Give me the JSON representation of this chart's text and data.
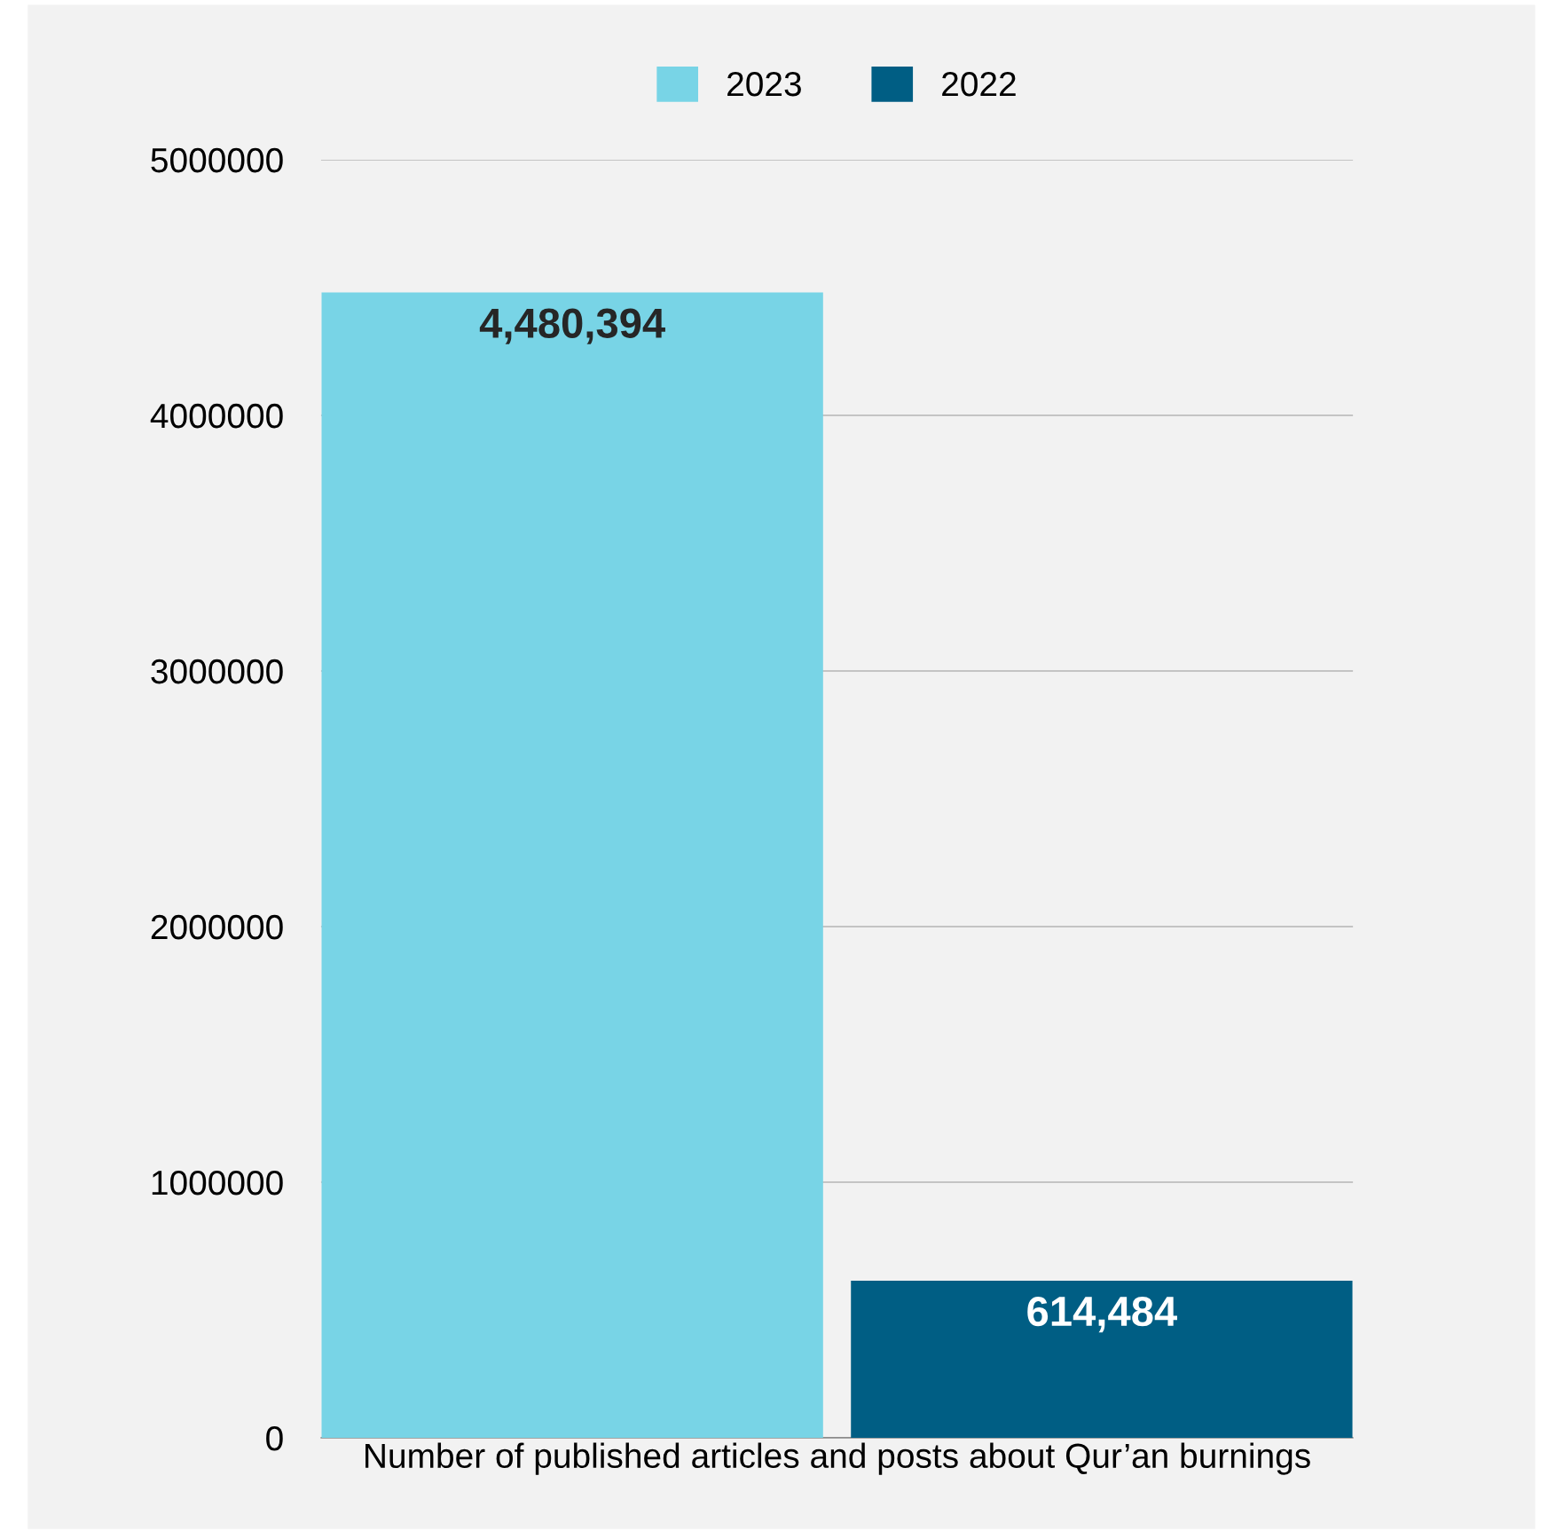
{
  "chart_data": {
    "type": "bar",
    "categories": [
      "Number of published articles and posts about Qur’an burnings"
    ],
    "series": [
      {
        "name": "2023",
        "color": "#78d4e6",
        "values": [
          4480394
        ],
        "value_labels": [
          "4,480,394"
        ]
      },
      {
        "name": "2022",
        "color": "#005e84",
        "values": [
          614484
        ],
        "value_labels": [
          "614,484"
        ]
      }
    ],
    "ylim": [
      0,
      5000000
    ],
    "yticks": [
      0,
      1000000,
      2000000,
      3000000,
      4000000,
      5000000
    ],
    "grid": "y",
    "legend": "top"
  }
}
